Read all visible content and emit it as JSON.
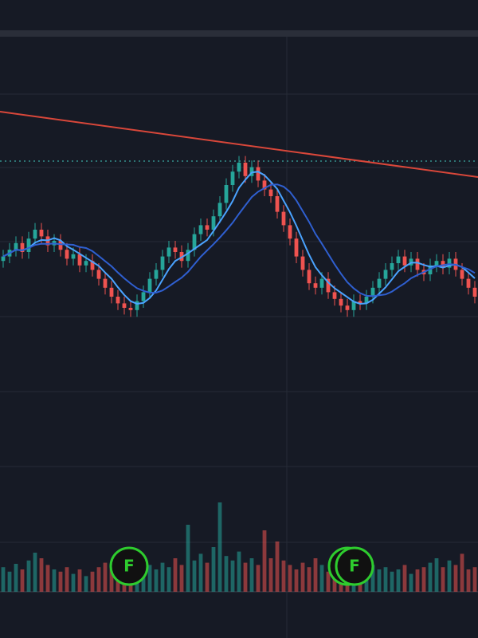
{
  "chart_data": {
    "type": "candlestick",
    "open": [
      26,
      28,
      31,
      34,
      30,
      36,
      40,
      37,
      33,
      35,
      31,
      27,
      29,
      24,
      26,
      22,
      18,
      14,
      10,
      7,
      5,
      4,
      8,
      12,
      18,
      22,
      28,
      32,
      30,
      26,
      31,
      38,
      42,
      40,
      46,
      52,
      60,
      66,
      70,
      64,
      68,
      62,
      58,
      55,
      48,
      42,
      36,
      28,
      22,
      16,
      14,
      18,
      12,
      9,
      6,
      4,
      8,
      7,
      10,
      14,
      18,
      22,
      25,
      28,
      24,
      27,
      22,
      20,
      24,
      26,
      23,
      27,
      22,
      18,
      14
    ],
    "high": [
      31,
      34,
      37,
      37,
      39,
      43,
      43,
      40,
      38,
      38,
      34,
      32,
      32,
      29,
      29,
      25,
      21,
      17,
      13,
      10,
      8,
      11,
      15,
      21,
      25,
      31,
      35,
      35,
      33,
      34,
      41,
      45,
      45,
      49,
      55,
      63,
      69,
      73,
      73,
      71,
      71,
      65,
      61,
      58,
      51,
      45,
      39,
      31,
      25,
      19,
      21,
      21,
      15,
      12,
      9,
      11,
      11,
      13,
      17,
      21,
      25,
      28,
      31,
      31,
      30,
      30,
      25,
      27,
      29,
      29,
      30,
      30,
      25,
      21,
      17
    ],
    "low": [
      23,
      25,
      28,
      27,
      27,
      33,
      34,
      30,
      30,
      28,
      24,
      24,
      21,
      21,
      19,
      15,
      11,
      7,
      4,
      2,
      1,
      1,
      5,
      9,
      15,
      19,
      25,
      27,
      23,
      23,
      28,
      35,
      37,
      37,
      43,
      49,
      57,
      63,
      61,
      61,
      59,
      55,
      52,
      45,
      39,
      33,
      25,
      19,
      13,
      11,
      11,
      9,
      6,
      3,
      1,
      1,
      4,
      4,
      7,
      11,
      15,
      19,
      22,
      21,
      21,
      19,
      17,
      17,
      21,
      20,
      20,
      19,
      15,
      11,
      7
    ],
    "close": [
      28,
      31,
      34,
      30,
      36,
      40,
      37,
      33,
      35,
      31,
      27,
      29,
      24,
      26,
      22,
      18,
      14,
      10,
      7,
      5,
      4,
      8,
      12,
      18,
      22,
      28,
      32,
      30,
      26,
      31,
      38,
      42,
      40,
      46,
      52,
      60,
      66,
      70,
      64,
      68,
      62,
      58,
      55,
      48,
      42,
      36,
      28,
      22,
      16,
      14,
      18,
      12,
      9,
      6,
      4,
      8,
      7,
      10,
      14,
      18,
      22,
      25,
      28,
      24,
      27,
      22,
      20,
      24,
      26,
      23,
      27,
      22,
      18,
      14,
      10
    ],
    "volume": [
      22,
      18,
      25,
      20,
      28,
      35,
      30,
      24,
      20,
      18,
      22,
      16,
      20,
      14,
      18,
      22,
      26,
      20,
      24,
      28,
      30,
      22,
      18,
      24,
      20,
      26,
      22,
      30,
      24,
      60,
      28,
      34,
      26,
      40,
      80,
      32,
      28,
      36,
      26,
      30,
      24,
      55,
      30,
      45,
      28,
      24,
      20,
      26,
      22,
      30,
      24,
      18,
      20,
      16,
      22,
      26,
      20,
      18,
      24,
      20,
      22,
      18,
      20,
      24,
      16,
      20,
      22,
      26,
      30,
      22,
      28,
      24,
      34,
      20,
      22
    ],
    "up_color": "#26a69a",
    "down_color": "#ef5350",
    "ylim": [
      0,
      100
    ],
    "volume_lim": [
      0,
      100
    ],
    "markers": [
      {
        "label": "F"
      },
      {
        "label": "F"
      }
    ]
  }
}
